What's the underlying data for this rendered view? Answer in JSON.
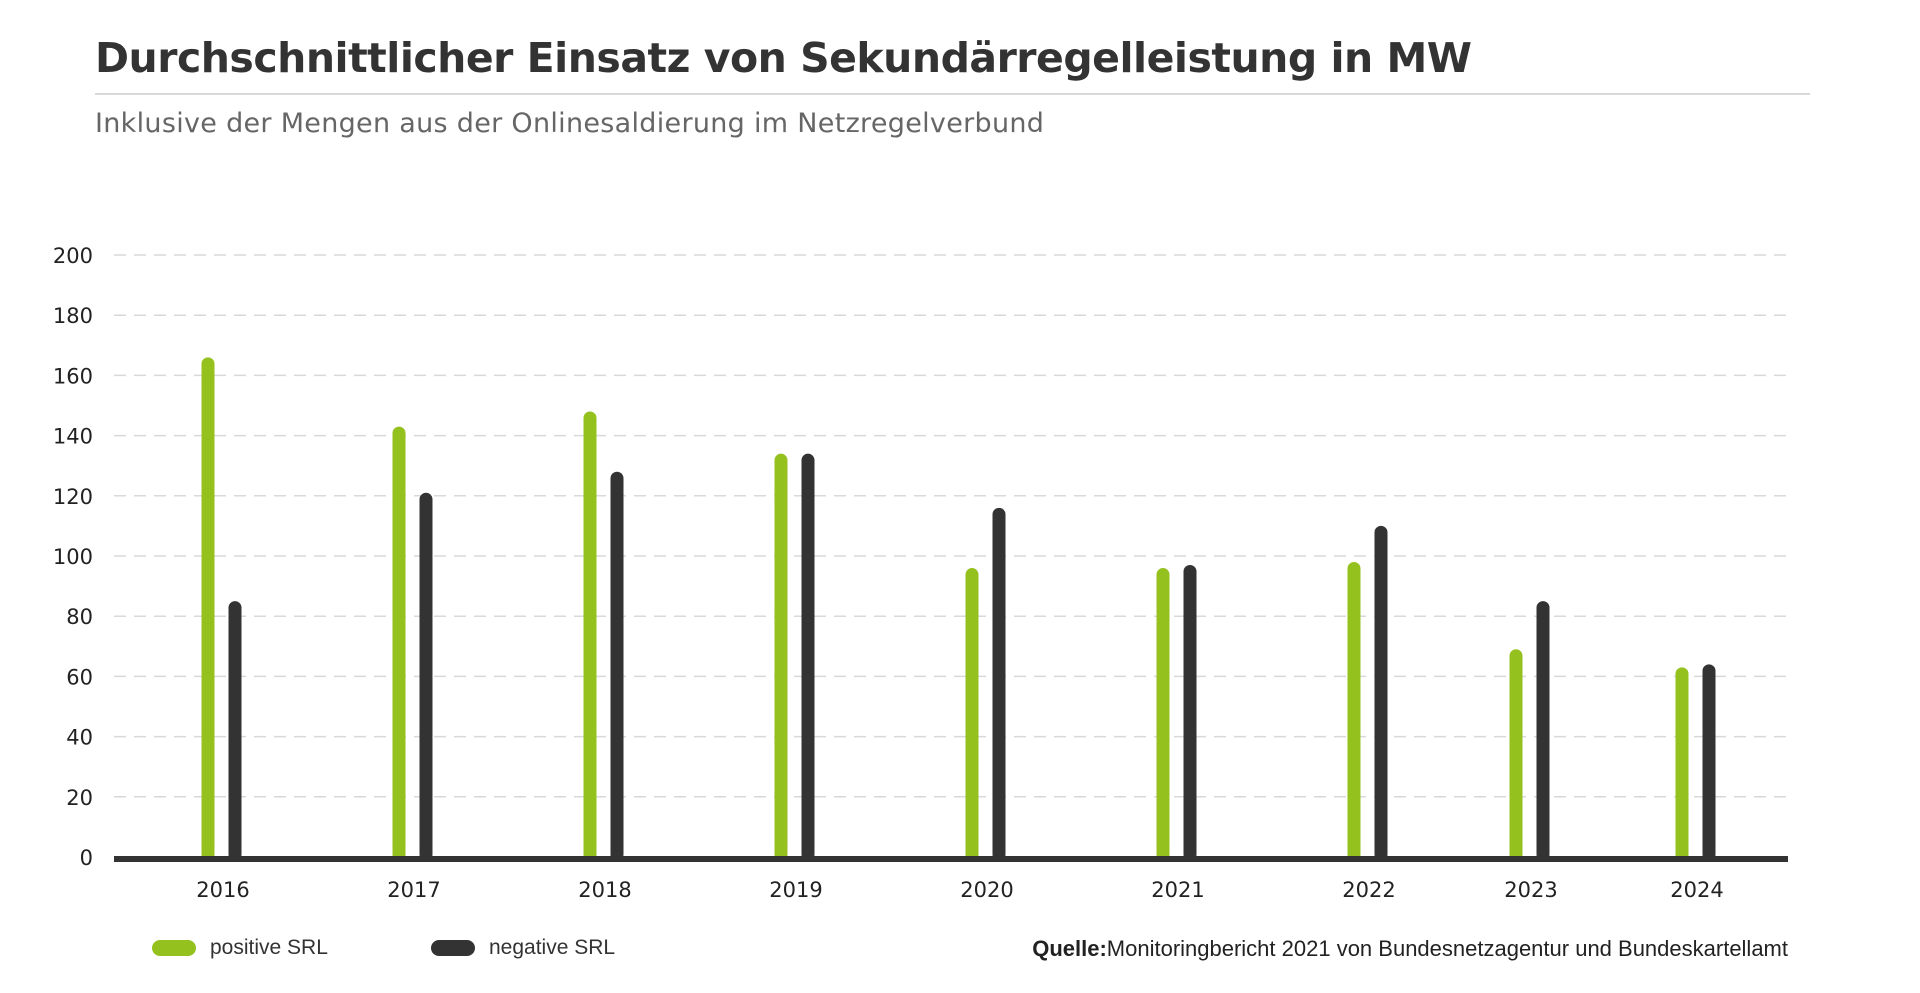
{
  "header": {
    "title": "Durchschnittlicher Einsatz von Sekundärregelleistung in MW",
    "subtitle": "Inklusive der Mengen aus der Onlinesaldierung im Netzregelverbund"
  },
  "source": {
    "label": "Quelle:",
    "text": "Monitoringbericht 2021 von Bundesnetzagentur und Bundeskartellamt"
  },
  "colors": {
    "positive": "#95c11f",
    "negative": "#333333",
    "grid": "#d9d9d9",
    "axis": "#333333"
  },
  "chart_data": {
    "type": "bar",
    "title": "Durchschnittlicher Einsatz von Sekundärregelleistung in MW",
    "subtitle": "Inklusive der Mengen aus der Onlinesaldierung im Netzregelverbund",
    "xlabel": "",
    "ylabel": "",
    "categories": [
      "2016",
      "2017",
      "2018",
      "2019",
      "2020",
      "2021",
      "2022",
      "2023",
      "2024"
    ],
    "series": [
      {
        "name": "positive SRL",
        "color": "#95c11f",
        "values": [
          166,
          143,
          148,
          134,
          96,
          96,
          98,
          69,
          63
        ]
      },
      {
        "name": "negative SRL",
        "color": "#333333",
        "values": [
          85,
          121,
          128,
          134,
          116,
          97,
          110,
          85,
          64
        ]
      }
    ],
    "ylim": [
      0,
      200
    ],
    "yticks": [
      "0",
      "20",
      "40",
      "60",
      "80",
      "100",
      "120",
      "140",
      "160",
      "180",
      "200"
    ],
    "grid": true,
    "legend_position": "bottom-left"
  }
}
